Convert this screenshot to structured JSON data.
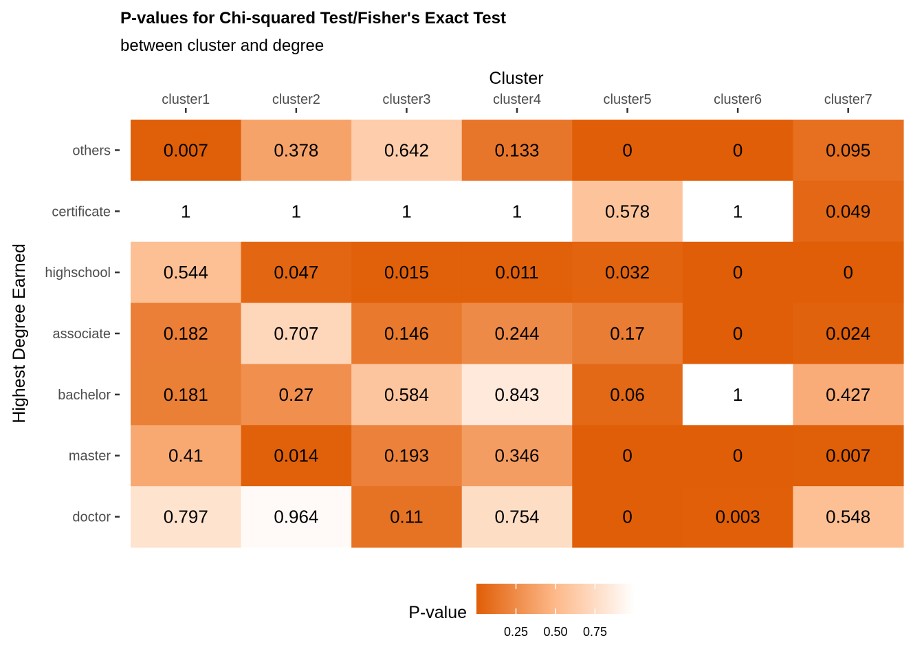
{
  "chart_data": {
    "type": "heatmap",
    "title": "P-values for Chi-squared Test/Fisher's Exact Test",
    "subtitle": "between cluster and degree",
    "xlabel": "Cluster",
    "ylabel": "Highest Degree Earned",
    "x_position": "top",
    "x_categories": [
      "cluster1",
      "cluster2",
      "cluster3",
      "cluster4",
      "cluster5",
      "cluster6",
      "cluster7"
    ],
    "y_categories": [
      "others",
      "certificate",
      "highschool",
      "associate",
      "bachelor",
      "master",
      "doctor"
    ],
    "values": [
      [
        "0.007",
        "0.378",
        "0.642",
        "0.133",
        "0",
        "0",
        "0.095"
      ],
      [
        "1",
        "1",
        "1",
        "1",
        "0.578",
        "1",
        "0.049"
      ],
      [
        "0.544",
        "0.047",
        "0.015",
        "0.011",
        "0.032",
        "0",
        "0"
      ],
      [
        "0.182",
        "0.707",
        "0.146",
        "0.244",
        "0.17",
        "0",
        "0.024"
      ],
      [
        "0.181",
        "0.27",
        "0.584",
        "0.843",
        "0.06",
        "1",
        "0.427"
      ],
      [
        "0.41",
        "0.014",
        "0.193",
        "0.346",
        "0",
        "0",
        "0.007"
      ],
      [
        "0.797",
        "0.964",
        "0.11",
        "0.754",
        "0",
        "0.003",
        "0.548"
      ]
    ],
    "color_scale": {
      "low": "#E05E07",
      "mid": "#FDB98A",
      "high": "#FFFFFF",
      "range": [
        0,
        1
      ]
    },
    "legend": {
      "title": "P-value",
      "position": "bottom",
      "ticks": [
        0.25,
        0.5,
        0.75
      ],
      "tick_labels": [
        "0.25",
        "0.50",
        "0.75"
      ]
    },
    "grid": false
  }
}
